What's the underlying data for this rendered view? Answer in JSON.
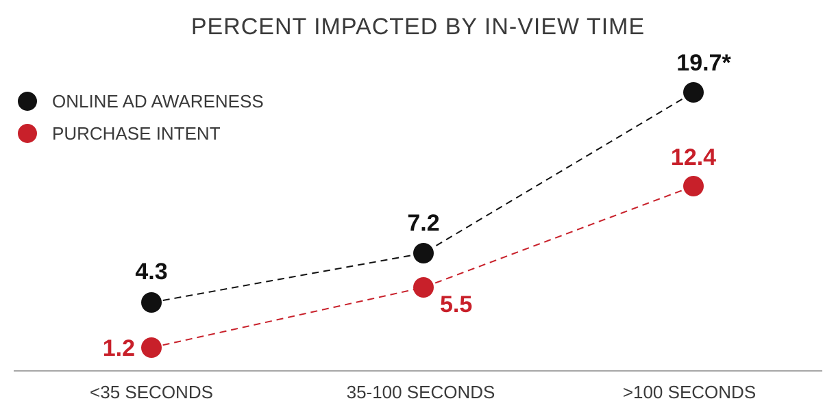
{
  "chart_data": {
    "type": "line",
    "title": "PERCENT IMPACTED BY IN-VIEW TIME",
    "categories": [
      "<35 SECONDS",
      "35-100 SECONDS",
      ">100 SECONDS"
    ],
    "series": [
      {
        "name": "ONLINE AD AWARENESS",
        "values": [
          4.3,
          7.2,
          19.7
        ],
        "labels": [
          "4.3",
          "7.2",
          "19.7*"
        ],
        "color": "#111111"
      },
      {
        "name": "PURCHASE INTENT",
        "values": [
          1.2,
          5.5,
          12.4
        ],
        "labels": [
          "1.2",
          "5.5",
          "12.4"
        ],
        "color": "#c8202a"
      }
    ],
    "line_style": "dashed",
    "legend_position": "top-left",
    "grid": false,
    "ylim": [
      0,
      20
    ]
  }
}
